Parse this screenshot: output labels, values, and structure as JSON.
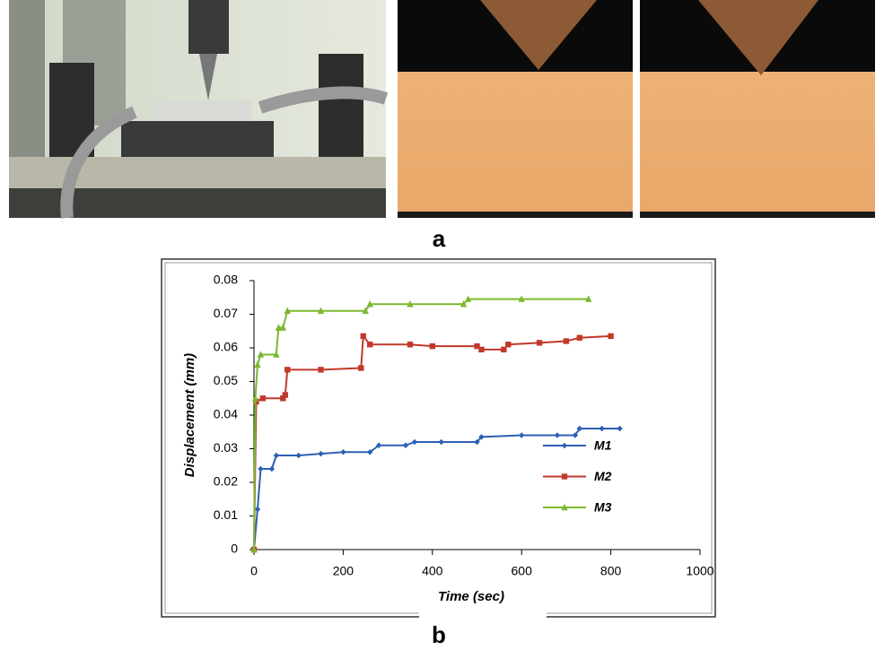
{
  "labels": {
    "a": "a",
    "b": "b"
  },
  "chart_data": {
    "type": "line",
    "xlabel": "Time (sec)",
    "ylabel": "Displacement (mm)",
    "xlim": [
      0,
      1000
    ],
    "xticks": [
      0,
      200,
      400,
      600,
      800,
      1000
    ],
    "ylim": [
      0,
      0.08
    ],
    "yticks": [
      0,
      0.01,
      0.02,
      0.03,
      0.04,
      0.05,
      0.06,
      0.07,
      0.08
    ],
    "grid": false,
    "legend": "center-right",
    "series": [
      {
        "name": "M1",
        "color": "#2e5fb5",
        "marker": "diamond",
        "x": [
          0,
          8,
          15,
          40,
          50,
          100,
          150,
          200,
          260,
          280,
          340,
          360,
          420,
          500,
          510,
          600,
          680,
          720,
          730,
          780,
          820
        ],
        "values": [
          0,
          0.012,
          0.024,
          0.024,
          0.028,
          0.028,
          0.0285,
          0.029,
          0.029,
          0.031,
          0.031,
          0.032,
          0.032,
          0.032,
          0.0335,
          0.034,
          0.034,
          0.034,
          0.036,
          0.036,
          0.036
        ]
      },
      {
        "name": "M2",
        "color": "#c0392b",
        "marker": "square",
        "x": [
          0,
          5,
          20,
          65,
          70,
          75,
          150,
          240,
          245,
          260,
          350,
          400,
          500,
          510,
          560,
          570,
          640,
          700,
          730,
          800
        ],
        "values": [
          0,
          0.044,
          0.045,
          0.045,
          0.046,
          0.0535,
          0.0535,
          0.054,
          0.0635,
          0.061,
          0.061,
          0.0605,
          0.0605,
          0.0595,
          0.0595,
          0.061,
          0.0615,
          0.062,
          0.063,
          0.0635
        ]
      },
      {
        "name": "M3",
        "color": "#7cb82f",
        "marker": "triangle",
        "x": [
          0,
          3,
          8,
          15,
          50,
          55,
          65,
          75,
          150,
          250,
          260,
          350,
          470,
          480,
          600,
          750
        ],
        "values": [
          0,
          0.045,
          0.055,
          0.058,
          0.058,
          0.066,
          0.066,
          0.071,
          0.071,
          0.071,
          0.073,
          0.073,
          0.073,
          0.0745,
          0.0745,
          0.0745
        ]
      }
    ]
  }
}
